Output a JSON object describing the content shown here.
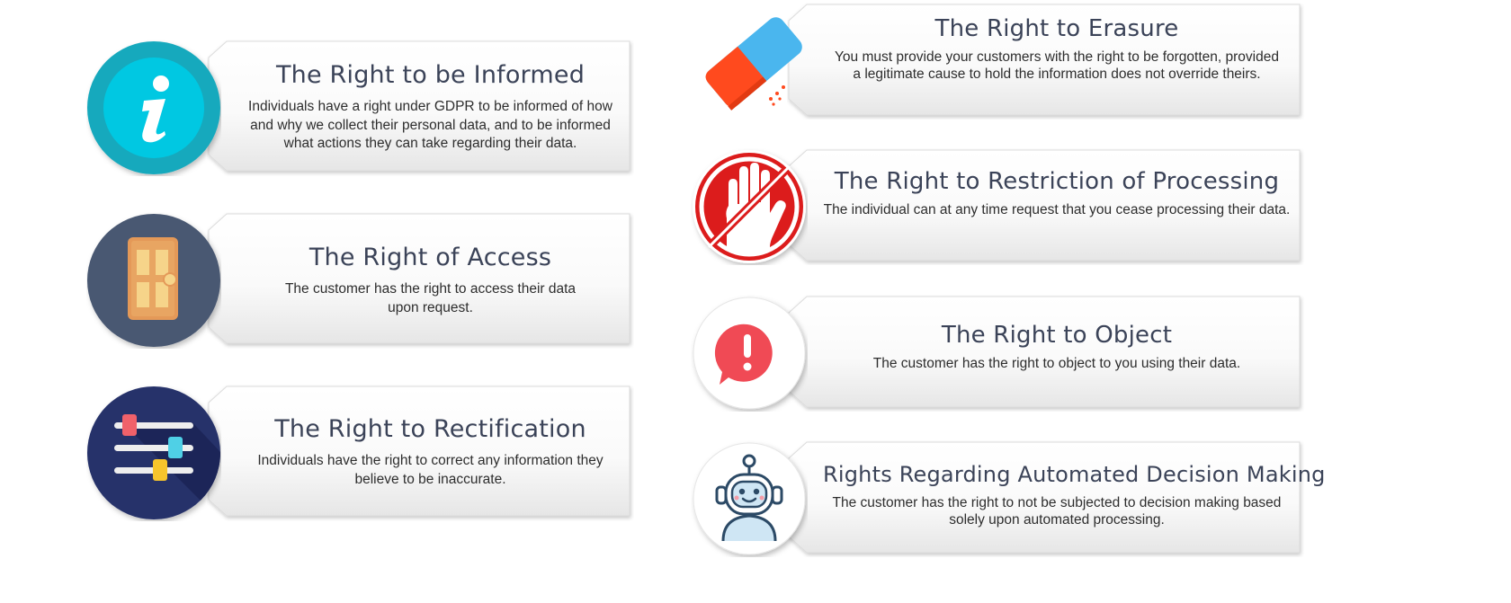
{
  "rights": [
    {
      "id": "informed",
      "title": "The Right to be Informed",
      "description": "Individuals have a right under GDPR to be informed of how and why we collect their personal data, and to be informed what actions they can take regarding their data.",
      "icon": "info-icon",
      "icon_color": "#1bb8cc"
    },
    {
      "id": "access",
      "title": "The Right of Access",
      "description": "The customer has the right to access their data upon request.",
      "icon": "door-icon",
      "icon_color": "#4a5872"
    },
    {
      "id": "rectification",
      "title": "The Right to Rectification",
      "description": "Individuals have the right to correct any information they believe to be inaccurate.",
      "icon": "sliders-icon",
      "icon_color": "#25306a"
    },
    {
      "id": "erasure",
      "title": "The Right to Erasure",
      "description": "You must provide your customers with the right to be forgotten, provided a legitimate cause to hold the information does not override theirs.",
      "icon": "eraser-icon",
      "icon_color": "#4ab6ee"
    },
    {
      "id": "restriction",
      "title": "The Right to Restriction of Processing",
      "description": "The individual can at any time request that you cease processing their data.",
      "icon": "stop-hand-icon",
      "icon_color": "#dc1c1c"
    },
    {
      "id": "object",
      "title": "The Right to Object",
      "description": "The customer has the right to object to you using their data.",
      "icon": "alert-speech-icon",
      "icon_color": "#f04a55"
    },
    {
      "id": "automated",
      "title": "Rights Regarding Automated Decision Making",
      "description": "The customer has the right to not be subjected to decision making based solely upon automated processing.",
      "icon": "robot-icon",
      "icon_color": "#2c4a66"
    }
  ]
}
